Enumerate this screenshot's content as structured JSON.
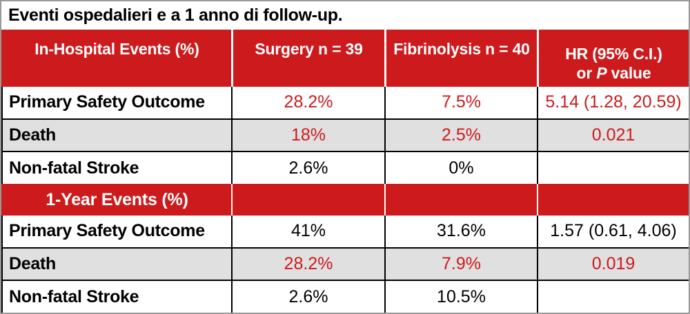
{
  "title": "Eventi ospedalieri e a 1 anno di follow-up.",
  "header": {
    "in_hospital": "In-Hospital Events (%)",
    "surgery": "Surgery n = 39",
    "fibrinolysis": "Fibrinolysis n = 40",
    "hr_line1": "HR (95% C.I.)",
    "hr_line2_pre": "or ",
    "hr_line2_italic": "P",
    "hr_line2_post": " value"
  },
  "rows": [
    {
      "label": "Primary Safety Outcome",
      "values": [
        "28.2%",
        "7.5%",
        "5.14 (1.28, 20.59)"
      ]
    },
    {
      "label": "Death",
      "values": [
        "18%",
        "2.5%",
        "0.021"
      ]
    },
    {
      "label": "Non-fatal Stroke",
      "values": [
        "2.6%",
        "0%",
        ""
      ]
    },
    {
      "label": "1-Year Events (%)",
      "values": [
        "",
        "",
        ""
      ]
    },
    {
      "label": "Primary Safety Outcome",
      "values": [
        "41%",
        "31.6%",
        "1.57 (0.61, 4.06)"
      ]
    },
    {
      "label": "Death",
      "values": [
        "28.2%",
        "7.9%",
        "0.019"
      ]
    },
    {
      "label": "Non-fatal Stroke",
      "values": [
        "2.6%",
        "10.5%",
        ""
      ]
    }
  ],
  "colors": {
    "header_red": "#cd1a1c",
    "value_red": "#cd1a1c",
    "zebra_gray": "#e0e0e0",
    "frame_gray": "#999999",
    "divider_black": "#000000"
  }
}
